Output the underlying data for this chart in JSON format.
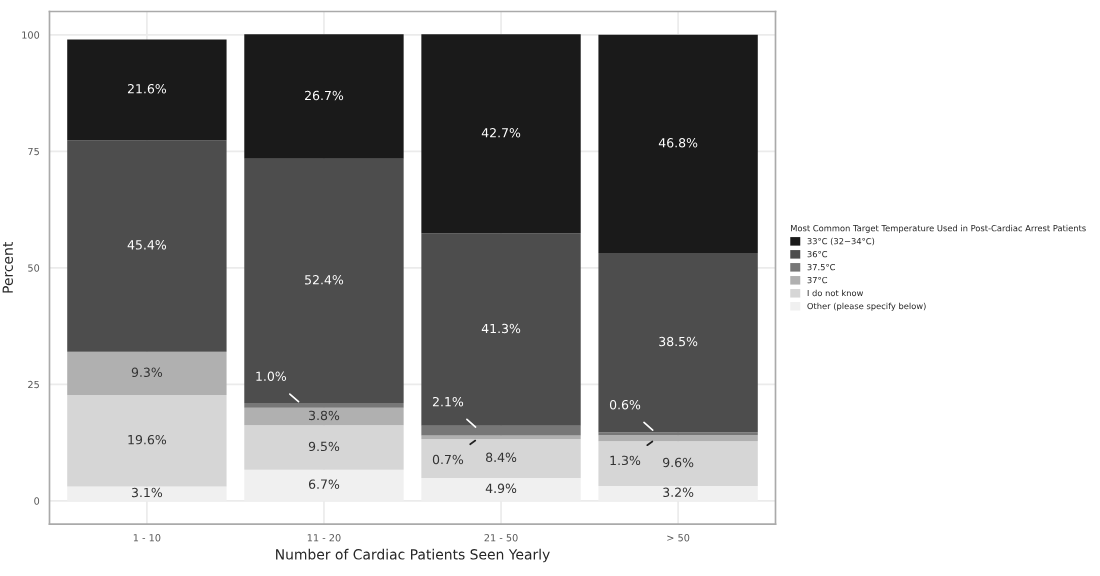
{
  "chart_data": {
    "type": "bar",
    "stacked": true,
    "xlabel": "Number of Cardiac Patients Seen Yearly",
    "ylabel": "Percent",
    "legend_title": "Most Common Target Temperature Used in Post-Cardiac Arrest Patients",
    "categories": [
      "1 - 10",
      "11 - 20",
      "21 - 50",
      "> 50"
    ],
    "series": [
      {
        "name": "Other (please specify below)",
        "color": "#f0f0f0",
        "values": [
          3.1,
          6.7,
          4.9,
          3.2
        ],
        "value_labels": [
          "3.1%",
          "6.7%",
          "4.9%",
          "3.2%"
        ]
      },
      {
        "name": "I do not know",
        "color": "#d6d6d6",
        "values": [
          19.6,
          9.5,
          8.4,
          9.6
        ],
        "value_labels": [
          "19.6%",
          "9.5%",
          "8.4%",
          "9.6%"
        ]
      },
      {
        "name": "37°C",
        "color": "#b0b0b0",
        "values": [
          9.3,
          3.8,
          0.7,
          1.3
        ],
        "value_labels": [
          "9.3%",
          "3.8%",
          "0.7%",
          "1.3%"
        ]
      },
      {
        "name": "37.5°C",
        "color": "#777777",
        "values": [
          null,
          1.0,
          2.1,
          0.6
        ],
        "value_labels": [
          null,
          "1.0%",
          "2.1%",
          "0.6%"
        ]
      },
      {
        "name": "36°C",
        "color": "#4d4d4d",
        "values": [
          45.4,
          52.4,
          41.3,
          38.5
        ],
        "value_labels": [
          "45.4%",
          "52.4%",
          "41.3%",
          "38.5%"
        ]
      },
      {
        "name": "33°C (32−34°C)",
        "color": "#1a1a1a",
        "values": [
          21.6,
          26.7,
          42.7,
          46.8
        ],
        "value_labels": [
          "21.6%",
          "26.7%",
          "42.7%",
          "46.8%"
        ]
      }
    ],
    "ylim": [
      -5,
      105
    ],
    "yticks": [
      0,
      25,
      50,
      75,
      100
    ],
    "grid": true,
    "legend": "right"
  }
}
